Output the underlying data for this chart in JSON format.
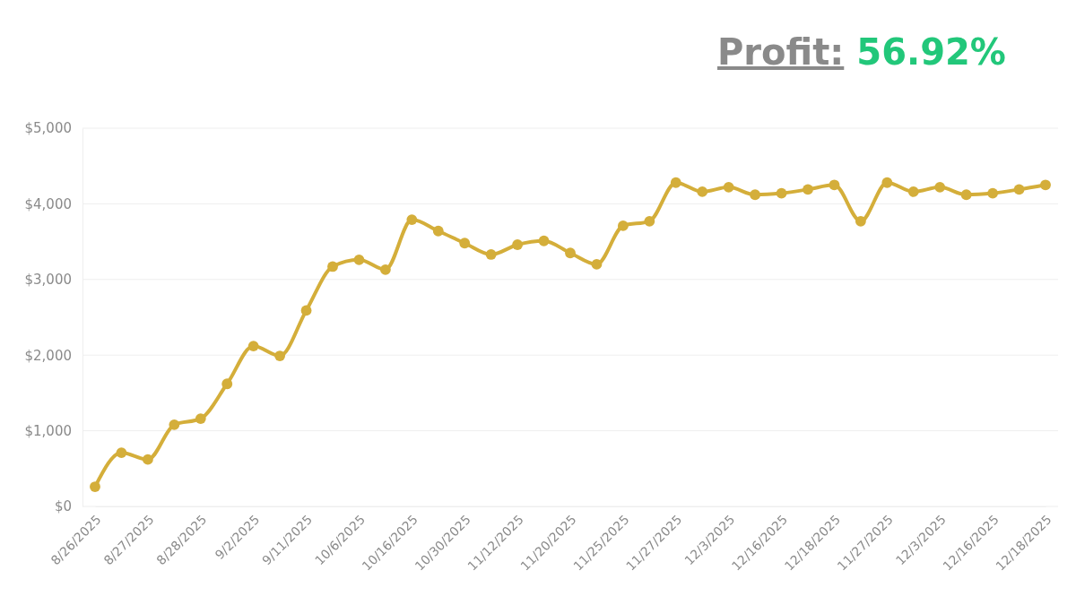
{
  "chart_data": {
    "type": "line",
    "title": "Profit:",
    "subtitle": "56.92%",
    "categories": [
      "8/26/2025",
      null,
      "8/27/2025",
      null,
      "8/28/2025",
      null,
      "9/2/2025",
      null,
      "9/11/2025",
      null,
      "10/6/2025",
      null,
      "10/16/2025",
      null,
      "10/30/2025",
      null,
      "11/12/2025",
      null,
      "11/20/2025",
      null,
      "11/25/2025",
      null,
      "11/27/2025",
      null,
      "12/3/2025",
      null,
      "12/16/2025",
      null,
      "12/18/2025",
      null,
      "11/27/2025",
      null,
      "12/3/2025",
      null,
      "12/16/2025",
      null,
      "12/18/2025"
    ],
    "series": [
      {
        "color": "#d4ae3a",
        "values": [
          260,
          710,
          620,
          1080,
          1160,
          1620,
          2120,
          1990,
          2590,
          3170,
          3260,
          3130,
          3790,
          3640,
          3480,
          3330,
          3460,
          3510,
          3350,
          3200,
          3710,
          3770,
          4280,
          4160,
          4220,
          4120,
          4140,
          4190,
          4250,
          3770,
          4280,
          4160,
          4220,
          4120,
          4140,
          4190,
          4250
        ]
      }
    ],
    "ylim": [
      0,
      5000
    ],
    "yticks": [
      {
        "value": 0,
        "label": "$0"
      },
      {
        "value": 1000,
        "label": "$1,000"
      },
      {
        "value": 2000,
        "label": "$2,000"
      },
      {
        "value": 3000,
        "label": "$3,000"
      },
      {
        "value": 4000,
        "label": "$4,000"
      },
      {
        "value": 5000,
        "label": "$5,000"
      }
    ],
    "grid": "y",
    "marker": "circle",
    "line_style": "solid"
  }
}
